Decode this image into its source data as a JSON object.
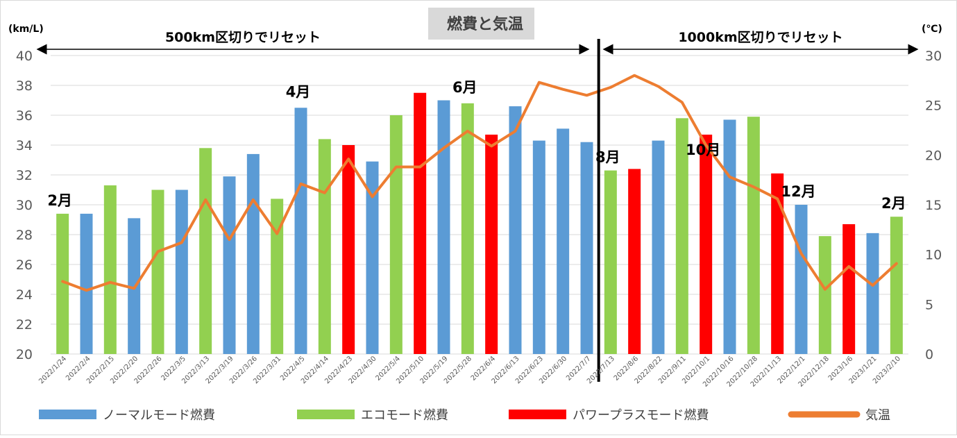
{
  "chart_data": {
    "type": "bar",
    "title": "燃費と気温",
    "y_left_unit": "(km/L)",
    "y_right_unit": "(℃)",
    "y_left_range": [
      20,
      40
    ],
    "y_left_ticks": [
      "20",
      "22",
      "24",
      "26",
      "28",
      "30",
      "32",
      "34",
      "36",
      "38",
      "40"
    ],
    "y_right_range": [
      0,
      30
    ],
    "y_right_ticks": [
      "0",
      "5",
      "10",
      "15",
      "20",
      "25",
      "30"
    ],
    "grid": true,
    "legend_position": "bottom",
    "categories": [
      "2022/1/24",
      "2022/2/4",
      "2022/2/15",
      "2022/2/20",
      "2022/2/26",
      "2022/3/5",
      "2022/3/13",
      "2022/3/19",
      "2022/3/26",
      "2022/3/31",
      "2022/4/5",
      "2022/4/14",
      "2022/4/23",
      "2022/4/30",
      "2022/5/4",
      "2022/5/10",
      "2022/5/19",
      "2022/5/28",
      "2022/6/4",
      "2022/6/13",
      "2022/6/23",
      "2022/6/30",
      "2022/7/7",
      "2022/7/13",
      "2022/8/6",
      "2022/8/22",
      "2022/9/11",
      "2022/10/1",
      "2022/10/16",
      "2022/10/28",
      "2022/11/13",
      "2022/12/1",
      "2022/12/18",
      "2023/1/6",
      "2023/1/21",
      "2023/2/10"
    ],
    "bar_values": [
      29.4,
      29.4,
      31.3,
      29.1,
      31.0,
      31.0,
      33.8,
      31.9,
      33.4,
      30.4,
      36.5,
      34.4,
      34.0,
      32.9,
      36.0,
      37.5,
      37.0,
      36.8,
      34.7,
      36.6,
      34.3,
      35.1,
      34.2,
      32.3,
      32.4,
      34.3,
      35.8,
      34.7,
      35.7,
      35.9,
      32.1,
      30.0,
      27.9,
      28.7,
      28.1,
      29.2
    ],
    "bar_modes": [
      "eco",
      "normal",
      "eco",
      "normal",
      "eco",
      "normal",
      "eco",
      "normal",
      "normal",
      "eco",
      "normal",
      "eco",
      "power",
      "normal",
      "eco",
      "power",
      "normal",
      "eco",
      "power",
      "normal",
      "normal",
      "normal",
      "normal",
      "eco",
      "power",
      "normal",
      "eco",
      "power",
      "normal",
      "eco",
      "power",
      "normal",
      "eco",
      "power",
      "normal",
      "eco"
    ],
    "series": [
      {
        "name": "ノーマルモード燃費",
        "mode": "normal",
        "color": "#5b9bd5"
      },
      {
        "name": "エコモード燃費",
        "mode": "eco",
        "color": "#92d050"
      },
      {
        "name": "パワープラスモード燃費",
        "mode": "power",
        "color": "#ff0000"
      },
      {
        "name": "気温",
        "type": "line",
        "axis": "right",
        "color": "#ed7d31",
        "values": [
          7.3,
          6.4,
          7.2,
          6.6,
          10.3,
          11.2,
          15.5,
          11.5,
          15.5,
          12.1,
          17.1,
          16.2,
          19.6,
          15.8,
          18.8,
          18.8,
          20.7,
          22.4,
          20.9,
          22.4,
          27.3,
          26.6,
          26.0,
          26.8,
          28.0,
          26.9,
          25.3,
          21.0,
          17.8,
          16.8,
          15.6,
          10.1,
          6.5,
          8.8,
          6.9,
          9.1
        ]
      }
    ],
    "month_labels": [
      {
        "text": "2月",
        "index": 0
      },
      {
        "text": "4月",
        "index": 10
      },
      {
        "text": "6月",
        "index": 17
      },
      {
        "text": "8月",
        "index": 23
      },
      {
        "text": "10月",
        "index": 27
      },
      {
        "text": "12月",
        "index": 31
      },
      {
        "text": "2月",
        "index": 35
      }
    ],
    "annotations": [
      {
        "text": "500km区切りでリセット",
        "from_index": 0,
        "to_index": 22
      },
      {
        "text": "1000km区切りでリセット",
        "from_index": 23,
        "to_index": 35
      }
    ],
    "divider_after_index": 22
  }
}
